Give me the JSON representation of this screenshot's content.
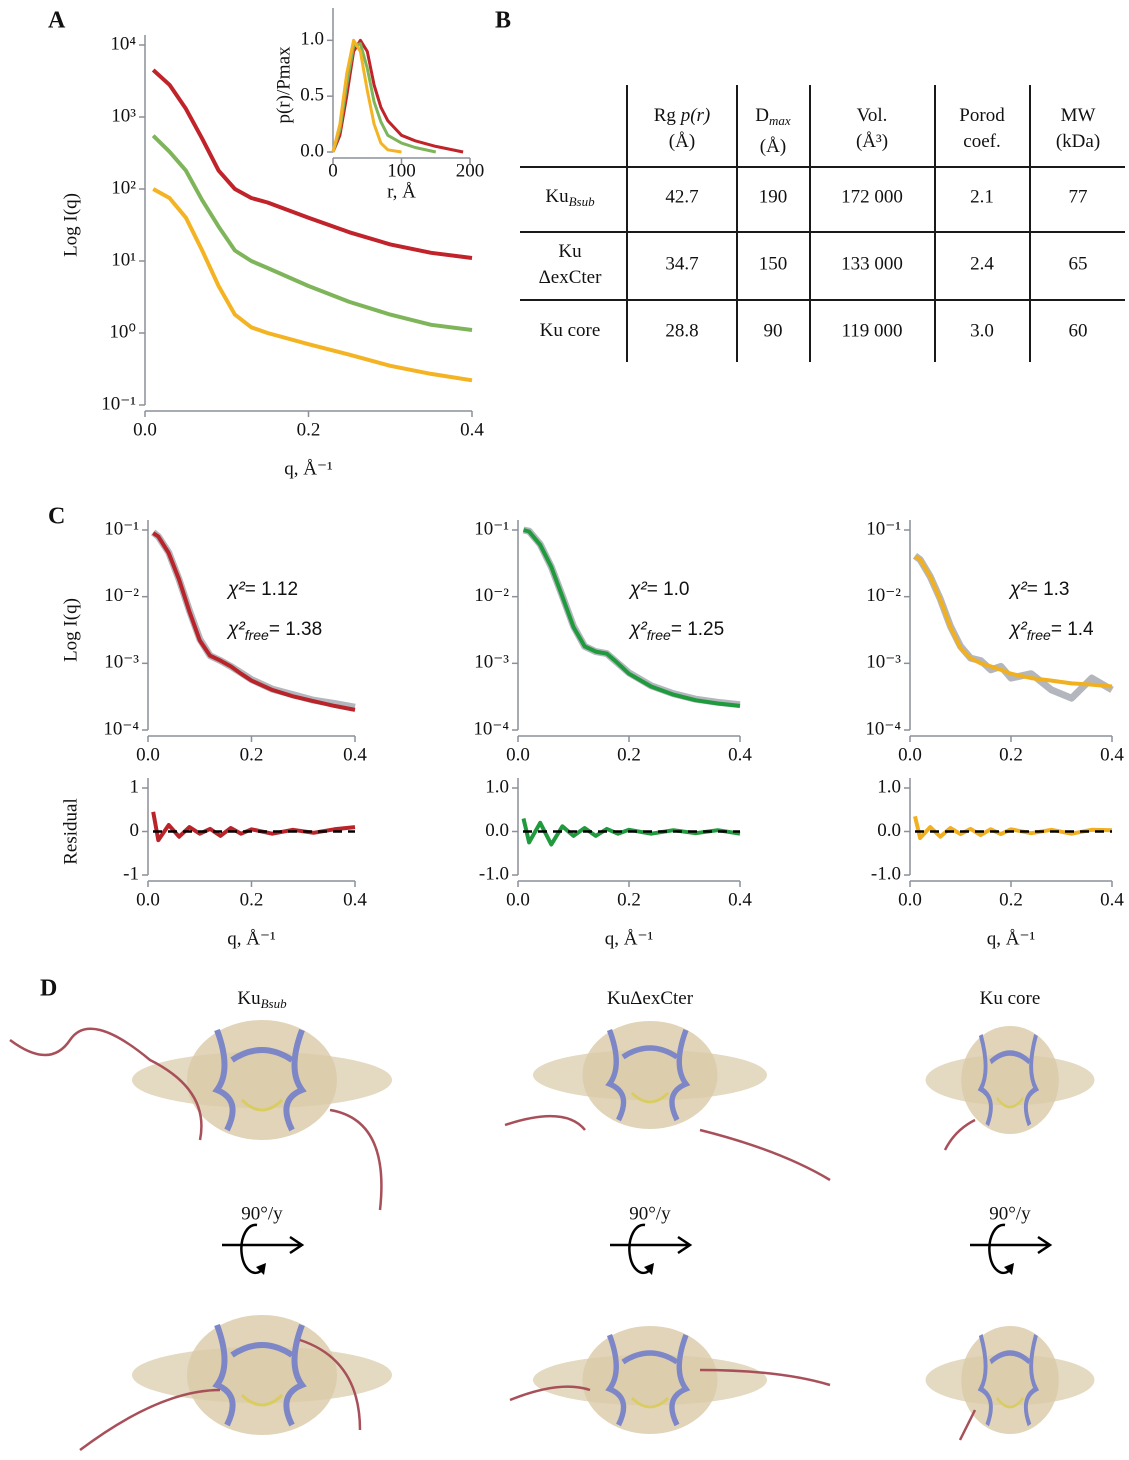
{
  "panel_labels": [
    "A",
    "B",
    "C",
    "D"
  ],
  "chart_data": [
    {
      "type": "line",
      "log_y": true,
      "x_label": "q, Å⁻¹",
      "y_label": "Log I(q)",
      "xlim": [
        0,
        0.4
      ],
      "xticks": [
        {
          "value": 0,
          "label": "0.0"
        },
        0.2,
        0.4
      ],
      "ylim": [
        0.1,
        10000
      ],
      "yticks": [
        {
          "value": 0.1,
          "label": "10⁻¹"
        },
        {
          "value": 1,
          "label": "10⁰"
        },
        {
          "value": 10,
          "label": "10¹"
        },
        {
          "value": 100,
          "label": "10²"
        },
        {
          "value": 1000,
          "label": "10³"
        },
        {
          "value": 10000,
          "label": "10⁴"
        }
      ],
      "x": [
        0.01,
        0.03,
        0.05,
        0.07,
        0.09,
        0.11,
        0.13,
        0.15,
        0.2,
        0.25,
        0.3,
        0.35,
        0.4
      ],
      "series": [
        {
          "color": "#c0232a",
          "values": [
            4500,
            2800,
            1300,
            500,
            180,
            100,
            75,
            65,
            40,
            25,
            17,
            13,
            11
          ]
        },
        {
          "color": "#7fb55a",
          "values": [
            550,
            330,
            180,
            70,
            30,
            14,
            10,
            8,
            4.5,
            2.7,
            1.8,
            1.3,
            1.1
          ]
        },
        {
          "color": "#f4b323",
          "values": [
            100,
            75,
            40,
            14,
            4.5,
            1.8,
            1.2,
            1.0,
            0.7,
            0.5,
            0.35,
            0.27,
            0.22
          ]
        }
      ]
    },
    {
      "type": "line",
      "log_y": false,
      "x_label": "r, Å",
      "y_label": "p(r)/Pmax",
      "xlim": [
        0,
        200
      ],
      "xticks": [
        0,
        100,
        200
      ],
      "ylim": [
        0,
        1.2
      ],
      "yticks": [
        {
          "value": 0,
          "label": "0.0"
        },
        0.5,
        {
          "value": 1,
          "label": "1.0"
        }
      ],
      "x": [
        0,
        10,
        20,
        30,
        40,
        50,
        60,
        70,
        80,
        100,
        120,
        150,
        190
      ],
      "series": [
        {
          "color": "#c0232a",
          "values": [
            0,
            0.15,
            0.5,
            0.9,
            1.0,
            0.9,
            0.6,
            0.4,
            0.28,
            0.15,
            0.1,
            0.05,
            0
          ]
        },
        {
          "color": "#7fb55a",
          "values": [
            0,
            0.2,
            0.6,
            0.95,
            0.97,
            0.75,
            0.45,
            0.27,
            0.15,
            0.08,
            0.04,
            0,
            null
          ]
        },
        {
          "color": "#f4b323",
          "values": [
            0,
            0.25,
            0.7,
            1.0,
            0.9,
            0.55,
            0.25,
            0.08,
            0.02,
            0,
            null,
            null,
            null
          ]
        }
      ]
    },
    {
      "type": "line",
      "log_y": true,
      "y_label": "Log I(q)",
      "xlim": [
        0,
        0.4
      ],
      "xticks": [
        {
          "value": 0,
          "label": "0.0"
        },
        0.2,
        0.4
      ],
      "ylim": [
        0.0001,
        0.1
      ],
      "yticks": [
        {
          "value": 0.0001,
          "label": "10⁻⁴"
        },
        {
          "value": 0.001,
          "label": "10⁻³"
        },
        {
          "value": 0.01,
          "label": "10⁻²"
        },
        {
          "value": 0.1,
          "label": "10⁻¹"
        }
      ],
      "annotations": [
        {
          "symbol": "χ²",
          "text": "= 1.12"
        },
        {
          "symbol": "χ²",
          "sub": "free",
          "text": "= 1.38"
        }
      ],
      "x": [
        0.01,
        0.02,
        0.04,
        0.06,
        0.08,
        0.1,
        0.12,
        0.14,
        0.16,
        0.18,
        0.2,
        0.24,
        0.28,
        0.32,
        0.36,
        0.4
      ],
      "series": [
        {
          "color": "#b3b6bc",
          "values": [
            0.092,
            0.08,
            0.046,
            0.018,
            0.0062,
            0.0023,
            0.0013,
            0.0011,
            0.0009,
            0.00072,
            0.00057,
            0.00041,
            0.00034,
            0.00028,
            0.00025,
            0.00022
          ]
        },
        {
          "color": "#b8242a",
          "values": [
            0.09,
            0.08,
            0.045,
            0.018,
            0.006,
            0.0022,
            0.0013,
            0.0011,
            0.0009,
            0.0007,
            0.00055,
            0.0004,
            0.00032,
            0.00027,
            0.00023,
            0.0002
          ]
        }
      ]
    },
    {
      "type": "line",
      "log_y": false,
      "y_label": "Residual",
      "x_label": "q, Å⁻¹",
      "xlim": [
        0,
        0.4
      ],
      "xticks": [
        {
          "value": 0,
          "label": "0.0"
        },
        0.2,
        0.4
      ],
      "ylim": [
        -1,
        1
      ],
      "yticks": [
        -1,
        0,
        1
      ],
      "hline": 0,
      "x": [
        0.01,
        0.02,
        0.04,
        0.06,
        0.08,
        0.1,
        0.12,
        0.14,
        0.16,
        0.18,
        0.2,
        0.24,
        0.28,
        0.32,
        0.36,
        0.4
      ],
      "series": [
        {
          "color": "#b8242a",
          "values": [
            0.45,
            -0.2,
            0.15,
            -0.12,
            0.1,
            -0.05,
            0.06,
            -0.1,
            0.08,
            -0.05,
            0.05,
            -0.05,
            0.04,
            -0.03,
            0.05,
            0.1
          ]
        }
      ]
    },
    {
      "type": "line",
      "log_y": true,
      "xlim": [
        0,
        0.4
      ],
      "xticks": [
        {
          "value": 0,
          "label": "0.0"
        },
        0.2,
        0.4
      ],
      "ylim": [
        0.0001,
        0.1
      ],
      "yticks": [
        {
          "value": 0.0001,
          "label": "10⁻⁴"
        },
        {
          "value": 0.001,
          "label": "10⁻³"
        },
        {
          "value": 0.01,
          "label": "10⁻²"
        },
        {
          "value": 0.1,
          "label": "10⁻¹"
        }
      ],
      "annotations": [
        {
          "symbol": "χ²",
          "text": "= 1.0"
        },
        {
          "symbol": "χ²",
          "sub": "free",
          "text": "= 1.25"
        }
      ],
      "x": [
        0.01,
        0.02,
        0.04,
        0.06,
        0.08,
        0.1,
        0.12,
        0.14,
        0.16,
        0.18,
        0.2,
        0.24,
        0.28,
        0.32,
        0.36,
        0.4
      ],
      "series": [
        {
          "color": "#b3b6bc",
          "values": [
            0.1,
            0.096,
            0.061,
            0.028,
            0.0102,
            0.0036,
            0.0018,
            0.0015,
            0.0014,
            0.001,
            0.00072,
            0.00046,
            0.00035,
            0.00029,
            0.00026,
            0.00024
          ]
        },
        {
          "color": "#1f9a3c",
          "values": [
            0.1,
            0.095,
            0.06,
            0.028,
            0.01,
            0.0035,
            0.0018,
            0.0015,
            0.0014,
            0.001,
            0.0007,
            0.00045,
            0.00034,
            0.00028,
            0.00025,
            0.00023
          ]
        }
      ]
    },
    {
      "type": "line",
      "log_y": false,
      "x_label": "q, Å⁻¹",
      "xlim": [
        0,
        0.4
      ],
      "xticks": [
        {
          "value": 0,
          "label": "0.0"
        },
        0.2,
        0.4
      ],
      "ylim": [
        -1,
        1
      ],
      "yticks": [
        {
          "value": -1,
          "label": "-1.0"
        },
        {
          "value": 0,
          "label": "0.0"
        },
        {
          "value": 1,
          "label": "1.0"
        }
      ],
      "hline": 0,
      "x": [
        0.01,
        0.02,
        0.04,
        0.06,
        0.08,
        0.1,
        0.12,
        0.14,
        0.16,
        0.18,
        0.2,
        0.24,
        0.28,
        0.32,
        0.36,
        0.4
      ],
      "series": [
        {
          "color": "#1f9a3c",
          "values": [
            0.3,
            -0.25,
            0.2,
            -0.3,
            0.12,
            -0.1,
            0.08,
            -0.1,
            0.06,
            -0.05,
            0.04,
            -0.05,
            0.03,
            -0.04,
            0.03,
            -0.05
          ]
        }
      ]
    },
    {
      "type": "line",
      "log_y": true,
      "xlim": [
        0,
        0.4
      ],
      "xticks": [
        {
          "value": 0,
          "label": "0.0"
        },
        0.2,
        0.4
      ],
      "ylim": [
        0.0001,
        0.1
      ],
      "yticks": [
        {
          "value": 0.0001,
          "label": "10⁻⁴"
        },
        {
          "value": 0.001,
          "label": "10⁻³"
        },
        {
          "value": 0.01,
          "label": "10⁻²"
        },
        {
          "value": 0.1,
          "label": "10⁻¹"
        }
      ],
      "annotations": [
        {
          "symbol": "χ²",
          "text": "= 1.3"
        },
        {
          "symbol": "χ²",
          "sub": "free",
          "text": "= 1.4"
        }
      ],
      "x": [
        0.01,
        0.02,
        0.04,
        0.06,
        0.08,
        0.1,
        0.12,
        0.14,
        0.16,
        0.18,
        0.2,
        0.24,
        0.28,
        0.32,
        0.36,
        0.4
      ],
      "series": [
        {
          "color": "#b3b6bc",
          "values": [
            0.041,
            0.036,
            0.02,
            0.0092,
            0.0036,
            0.0018,
            0.0012,
            0.0011,
            0.0008,
            0.0009,
            0.0006,
            0.0007,
            0.0004,
            0.0003,
            0.0006,
            0.0004
          ]
        },
        {
          "color": "#f0b020",
          "values": [
            0.04,
            0.036,
            0.02,
            0.009,
            0.0035,
            0.0017,
            0.0012,
            0.001,
            0.0009,
            0.0008,
            0.0007,
            0.0006,
            0.00055,
            0.0005,
            0.00048,
            0.00045
          ]
        }
      ]
    },
    {
      "type": "line",
      "log_y": false,
      "x_label": "q, Å⁻¹",
      "xlim": [
        0,
        0.4
      ],
      "xticks": [
        {
          "value": 0,
          "label": "0.0"
        },
        0.2,
        0.4
      ],
      "ylim": [
        -1,
        1
      ],
      "yticks": [
        {
          "value": -1,
          "label": "-1.0"
        },
        {
          "value": 0,
          "label": "0.0"
        },
        {
          "value": 1,
          "label": "1.0"
        }
      ],
      "hline": 0,
      "x": [
        0.01,
        0.02,
        0.04,
        0.06,
        0.08,
        0.1,
        0.12,
        0.14,
        0.16,
        0.18,
        0.2,
        0.24,
        0.28,
        0.32,
        0.36,
        0.4
      ],
      "series": [
        {
          "color": "#f0b020",
          "values": [
            0.35,
            -0.15,
            0.1,
            -0.12,
            0.08,
            -0.06,
            0.06,
            -0.08,
            0.05,
            -0.06,
            0.05,
            -0.04,
            0.04,
            -0.05,
            0.04,
            0.03
          ]
        }
      ]
    }
  ],
  "table": {
    "columns": [
      {
        "name": "Rg ",
        "italic": "p(r)",
        "unit": "(Å)"
      },
      {
        "name": "D",
        "sub": "max",
        "unit": "(Å)"
      },
      {
        "name": "Vol.",
        "unit": "(Å³)"
      },
      {
        "name": "Porod",
        "unit": "coef."
      },
      {
        "name": "MW",
        "unit": "(kDa)"
      }
    ],
    "rows": [
      {
        "label": {
          "name": "Ku",
          "sub": "Bsub"
        },
        "cells": [
          "42.7",
          "190",
          "172 000",
          "2.1",
          "77"
        ]
      },
      {
        "label": {
          "name": "Ku",
          "unit": "ΔexCter"
        },
        "cells": [
          "34.7",
          "150",
          "133 000",
          "2.4",
          "65"
        ]
      },
      {
        "label": {
          "name": "Ku core"
        },
        "cells": [
          "28.8",
          "90",
          "119 000",
          "3.0",
          "60"
        ]
      }
    ]
  },
  "structures": {
    "labels": [
      {
        "name": "Ku",
        "sub": "Bsub"
      },
      {
        "name": "KuΔexCter"
      },
      {
        "name": "Ku core"
      }
    ],
    "rotations": [
      "90°/y",
      "90°/y",
      "90°/y"
    ]
  }
}
